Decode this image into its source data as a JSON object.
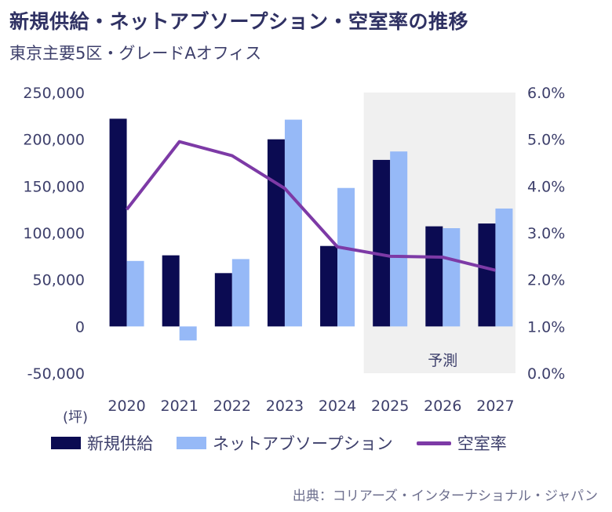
{
  "title": "新規供給・ネットアブソープション・空室率の推移",
  "subtitle": "東京主要5区・グレードAオフィス",
  "unit_label": "(坪)",
  "forecast_label": "予測",
  "source": "出典：コリアーズ・インターナショナル・ジャパン",
  "colors": {
    "supply": "#0b0b52",
    "absorption": "#96b9f7",
    "vacancy": "#7d3aa6",
    "forecast_bg": "#f0f0f0"
  },
  "legend": [
    {
      "label": "新規供給",
      "color": "#0b0b52",
      "kind": "bar"
    },
    {
      "label": "ネットアブソープション",
      "color": "#96b9f7",
      "kind": "bar"
    },
    {
      "label": "空室率",
      "color": "#7d3aa6",
      "kind": "line"
    }
  ],
  "chart_data": {
    "type": "bar",
    "categories": [
      "2020",
      "2021",
      "2022",
      "2023",
      "2024",
      "2025",
      "2026",
      "2027"
    ],
    "series": [
      {
        "name": "新規供給",
        "type": "bar",
        "axis": "left",
        "values": [
          222000,
          76000,
          57000,
          200000,
          86000,
          178000,
          107000,
          110000
        ]
      },
      {
        "name": "ネットアブソープション",
        "type": "bar",
        "axis": "left",
        "values": [
          70000,
          -15000,
          72000,
          221000,
          148000,
          187000,
          105000,
          126000
        ]
      },
      {
        "name": "空室率",
        "type": "line",
        "axis": "right",
        "values": [
          3.5,
          4.95,
          4.65,
          3.95,
          2.7,
          2.5,
          2.48,
          2.2
        ]
      }
    ],
    "ylim_left": [
      -50000,
      250000
    ],
    "ytick_left_labels": [
      "250,000",
      "200,000",
      "150,000",
      "100,000",
      "50,000",
      "0",
      "-50,000"
    ],
    "ylim_right": [
      0,
      6
    ],
    "ytick_right_labels": [
      "6.0%",
      "5.0%",
      "4.0%",
      "3.0%",
      "2.0%",
      "1.0%",
      "0.0%"
    ],
    "forecast_start": "2025",
    "grid": false,
    "legend_position": "bottom"
  }
}
